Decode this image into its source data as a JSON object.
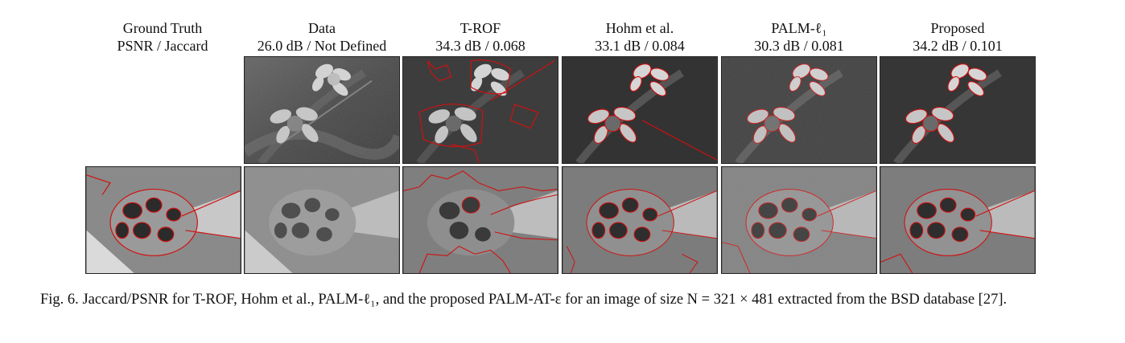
{
  "columns": [
    {
      "title": "Ground Truth",
      "sub": "PSNR / Jaccard"
    },
    {
      "title": "Data",
      "sub": "26.0 dB / Not Defined"
    },
    {
      "title": "T-ROF",
      "sub": "34.3 dB / 0.068"
    },
    {
      "title": "Hohm et al.",
      "sub": "33.1 dB / 0.084"
    },
    {
      "title": "PALM-ℓ₁",
      "sub": "30.3 dB / 0.081"
    },
    {
      "title": "Proposed",
      "sub": "34.2 dB / 0.101"
    }
  ],
  "caption": {
    "lead": "Fig. 6.",
    "text": "Jaccard/PSNR for T-ROF, Hohm et al., PALM-ℓ₁, and the proposed PALM-AT-ε for an image of size N = 321 × 481 extracted from the BSD database [27]."
  },
  "colors": {
    "contour": "#d01010",
    "frame": "#222222"
  }
}
